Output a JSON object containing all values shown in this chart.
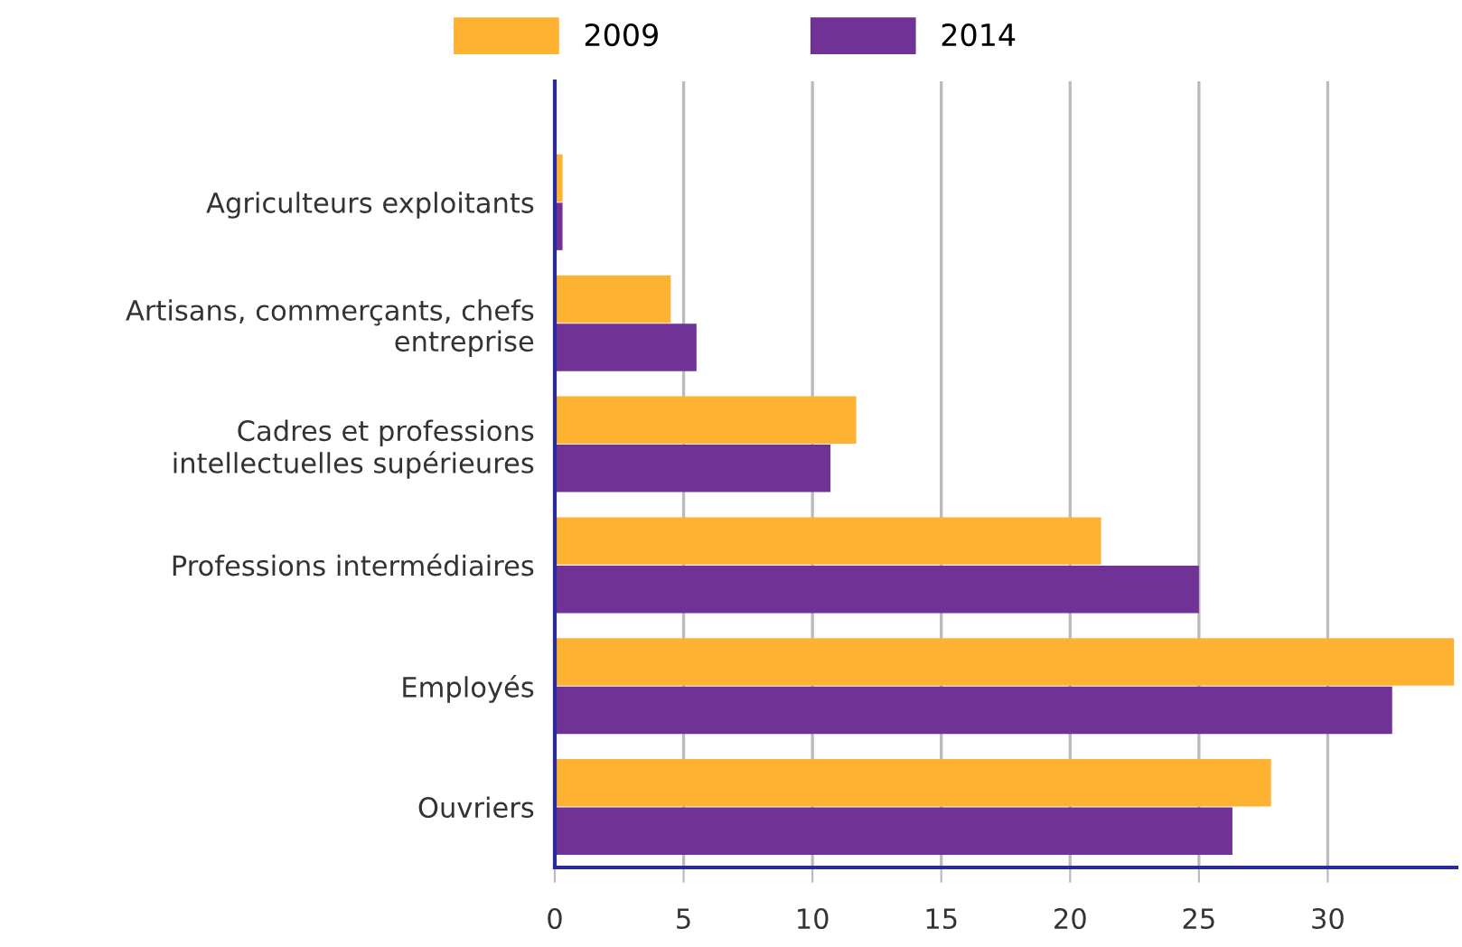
{
  "chart_data": {
    "type": "bar",
    "orientation": "horizontal",
    "categories": [
      "Agriculteurs exploitants",
      "Artisans, commerçants, chefs\nentreprise",
      "Cadres et professions\nintellectuelles supérieures",
      "Professions intermédiaires",
      "Employés",
      "Ouvriers"
    ],
    "series": [
      {
        "name": "2009",
        "color": "#fdb232",
        "values": [
          0.3,
          4.5,
          11.7,
          21.2,
          34.9,
          27.8
        ]
      },
      {
        "name": "2014",
        "color": "#703296",
        "values": [
          0.3,
          5.5,
          10.7,
          25.0,
          32.5,
          26.3
        ]
      }
    ],
    "xlim": [
      0,
      35
    ],
    "xticks": [
      0,
      5,
      10,
      15,
      20,
      25,
      30
    ],
    "grid": "x",
    "legend": "top"
  }
}
